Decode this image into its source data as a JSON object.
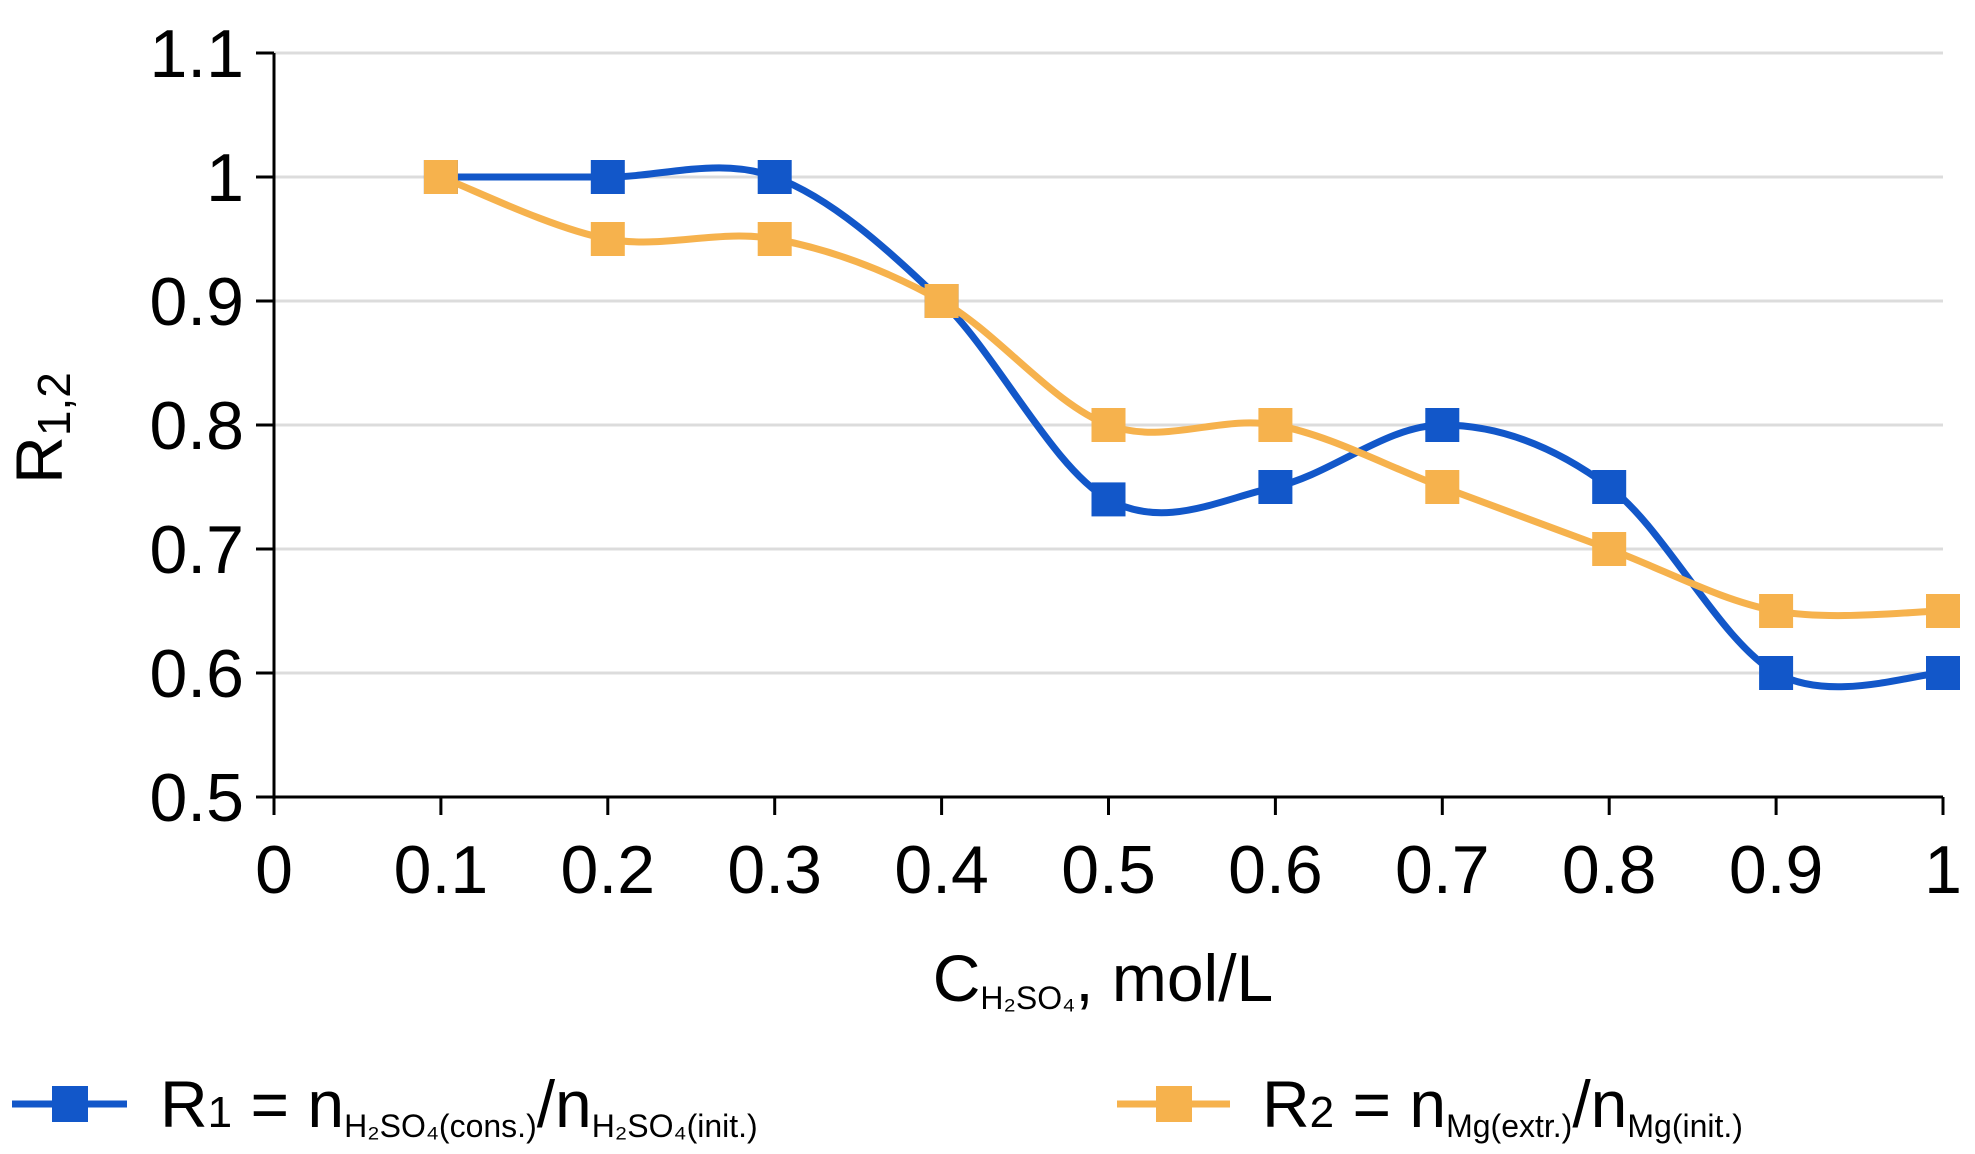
{
  "chart_data": {
    "type": "line",
    "title": "",
    "x": [
      0.1,
      0.2,
      0.3,
      0.4,
      0.5,
      0.6,
      0.7,
      0.8,
      0.9,
      1.0
    ],
    "xlim": [
      0,
      1
    ],
    "ylim": [
      0.5,
      1.1
    ],
    "xticks": [
      "0",
      "0.1",
      "0.2",
      "0.3",
      "0.4",
      "0.5",
      "0.6",
      "0.7",
      "0.8",
      "0.9",
      "1"
    ],
    "yticks": [
      "0.5",
      "0.6",
      "0.7",
      "0.8",
      "0.9",
      "1",
      "1.1"
    ],
    "xlabel": {
      "main": "C",
      "sub": "H₂SO₄",
      "tail": ", mol/L"
    },
    "ylabel": {
      "main": "R",
      "sub": "1,2"
    },
    "grid": "horizontal",
    "legend_position": "bottom",
    "series": [
      {
        "name": "R1",
        "color": "#1257c9",
        "marker": "square",
        "values": [
          1.0,
          1.0,
          1.0,
          0.9,
          0.74,
          0.75,
          0.8,
          0.75,
          0.6,
          0.6
        ],
        "legend": {
          "main": "R",
          "index": "1",
          "eq": " = n",
          "num_sub": "H₂SO₄(cons.)",
          "slash": "/n",
          "den_sub": "H₂SO₄(init.)"
        }
      },
      {
        "name": "R2",
        "color": "#f6b24d",
        "marker": "square",
        "values": [
          1.0,
          0.95,
          0.95,
          0.9,
          0.8,
          0.8,
          0.75,
          0.7,
          0.65,
          0.65
        ],
        "legend": {
          "main": "R",
          "index": "2",
          "eq": " = n",
          "num_sub": "Mg(extr.)",
          "slash": "/n",
          "den_sub": "Mg(init.)"
        }
      }
    ]
  }
}
